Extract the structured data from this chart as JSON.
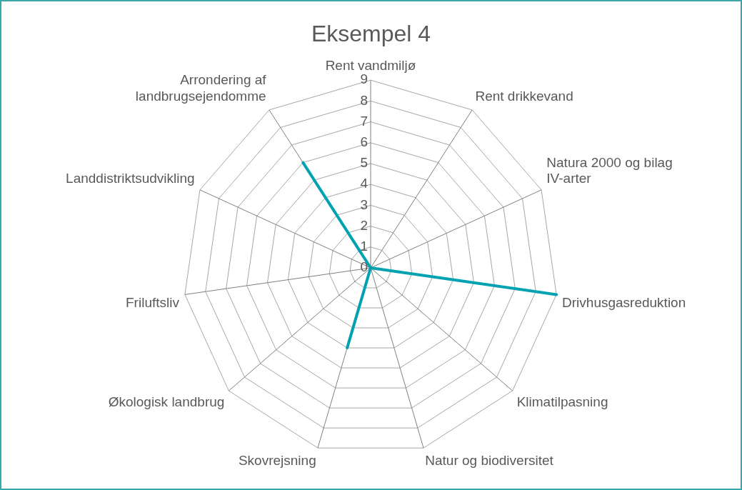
{
  "chart_data": {
    "type": "radar",
    "title": "Eksempel 4",
    "categories": [
      "Rent vandmiljø",
      "Rent drikkevand",
      "Natura 2000 og bilag IV-arter",
      "Drivhusgasreduktion",
      "Klimatilpasning",
      "Natur og biodiversitet",
      "Skovrejsning",
      "Økologisk landbrug",
      "Friluftsliv",
      "Landdistriktsudvikling",
      "Arrondering af landbrugsejendomme"
    ],
    "series": [
      {
        "color": "#00a2b1",
        "values": [
          0,
          0,
          0,
          9,
          0,
          0,
          4,
          0,
          0,
          0,
          6
        ]
      }
    ],
    "ylim": [
      0,
      9
    ],
    "yticks": [
      0,
      1,
      2,
      3,
      4,
      5,
      6,
      7,
      8,
      9
    ],
    "grid": true,
    "legend": false,
    "marker": "none"
  }
}
